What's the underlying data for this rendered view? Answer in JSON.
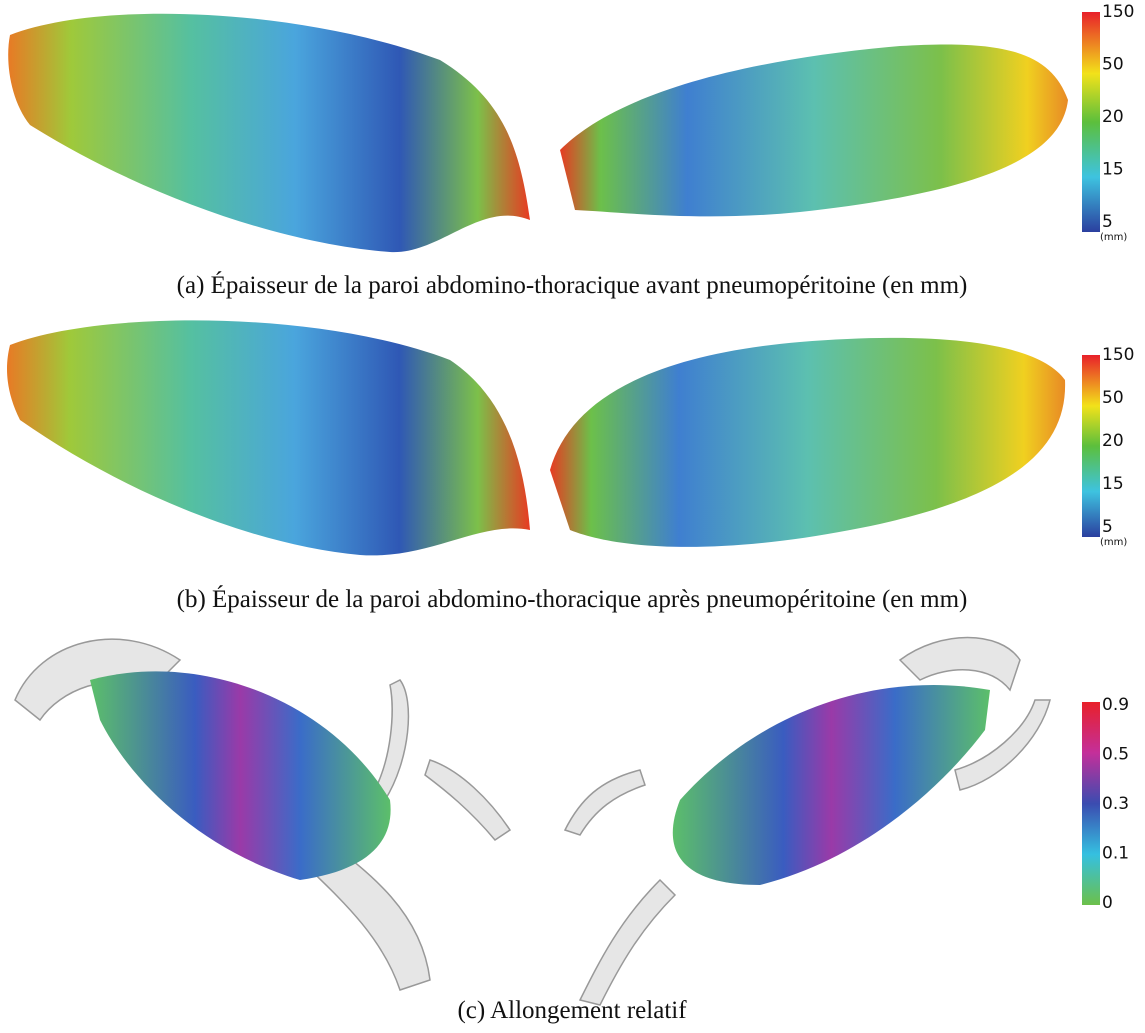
{
  "panels": [
    {
      "caption": "(a) Épaisseur de la paroi abdomino-thoracique avant pneumopéritoine (en mm)",
      "colorbar": {
        "labels": [
          "150",
          "50",
          "20",
          "15",
          "5"
        ],
        "unit": "(mm)"
      }
    },
    {
      "caption": "(b) Épaisseur de la paroi abdomino-thoracique après pneumopéritoine (en mm)",
      "colorbar": {
        "labels": [
          "150",
          "50",
          "20",
          "15",
          "5"
        ],
        "unit": "(mm)"
      }
    },
    {
      "caption": "(c) Allongement relatif",
      "colorbar": {
        "labels": [
          "0.9",
          "0.5",
          "0.3",
          "0.1",
          "0"
        ]
      }
    }
  ]
}
